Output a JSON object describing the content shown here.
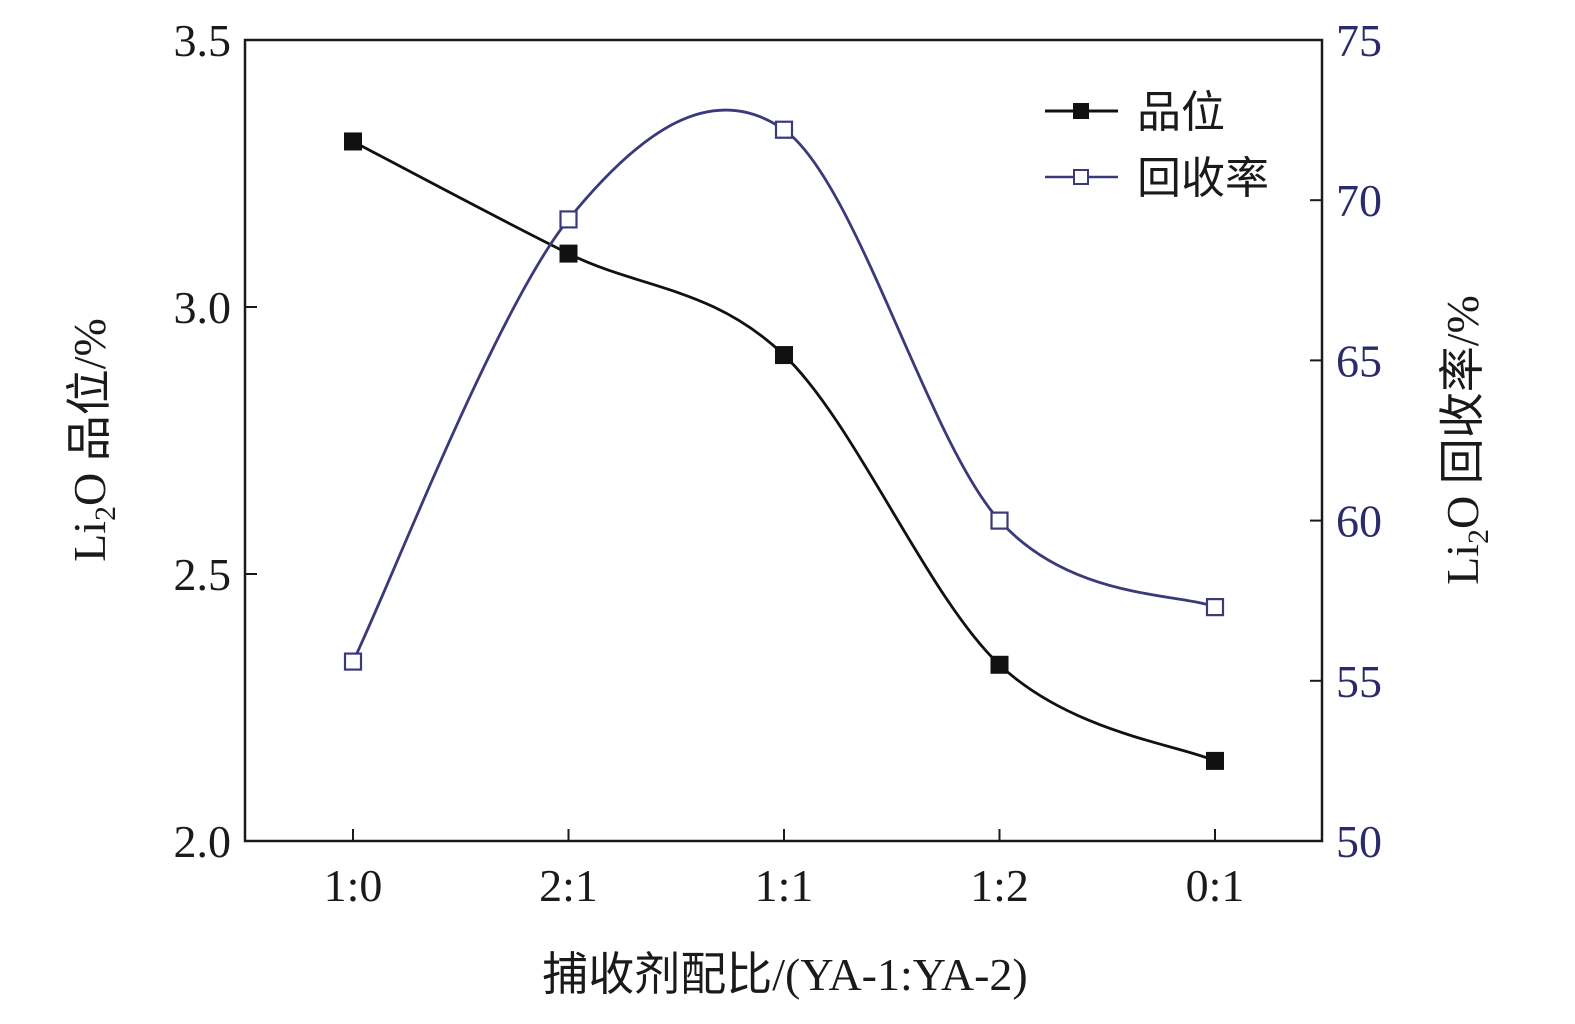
{
  "chart_data": {
    "type": "line",
    "categories": [
      "1:0",
      "2:1",
      "1:1",
      "1:2",
      "0:1"
    ],
    "xlabel": "捕收剂配比/(YA-1:YA-2)",
    "y_left": {
      "label": "Li2O 品位/%",
      "label_parts": {
        "pre": "Li",
        "sub": "2",
        "post": "O 品位/%"
      },
      "range": [
        2.0,
        3.5
      ],
      "ticks": [
        "2.0",
        "2.5",
        "3.0",
        "3.5"
      ]
    },
    "y_right": {
      "label": "Li2O 回收率/%",
      "label_parts": {
        "pre": "Li",
        "sub": "2",
        "post": "O 回收率/%"
      },
      "range": [
        50,
        75
      ],
      "ticks": [
        "50",
        "55",
        "60",
        "65",
        "70",
        "75"
      ]
    },
    "series": [
      {
        "name": "品位",
        "axis": "left",
        "marker": "filled-square",
        "color": "#111111",
        "values": [
          3.31,
          3.1,
          2.91,
          2.33,
          2.15
        ]
      },
      {
        "name": "回收率",
        "axis": "right",
        "marker": "open-square",
        "color": "#3a3a7a",
        "values": [
          55.6,
          69.4,
          72.2,
          60.0,
          57.3
        ]
      }
    ],
    "legend_position": "top-right",
    "grid": false
  }
}
